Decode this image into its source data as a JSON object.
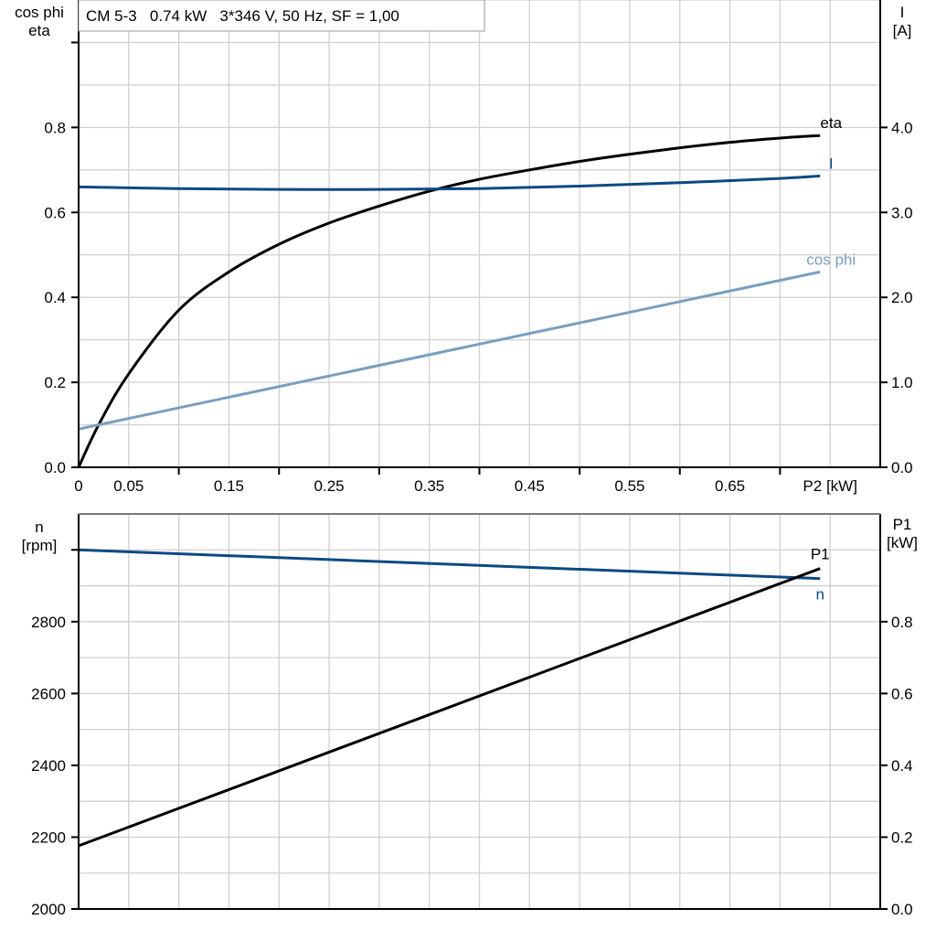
{
  "chart_data": [
    {
      "type": "line",
      "title": "CM 5-3   0.74 kW   3*346 V, 50 Hz, SF = 1,00",
      "xlabel": "P2 [kW]",
      "ylabel_left": [
        "cos phi",
        "eta"
      ],
      "ylabel_right": [
        "I",
        "[A]"
      ],
      "xlim": [
        0,
        0.8
      ],
      "ylim_left": [
        0,
        1.1
      ],
      "ylim_right": [
        0,
        5.5
      ],
      "x_tick_labels": [
        "0",
        "0.05",
        "0.15",
        "0.25",
        "0.35",
        "0.45",
        "0.55",
        "0.65"
      ],
      "y_left_tick_labels": [
        "0.0",
        "0.2",
        "0.4",
        "0.6",
        "0.8"
      ],
      "y_right_tick_labels": [
        "0.0",
        "1.0",
        "2.0",
        "3.0",
        "4.0"
      ],
      "grid": true,
      "series": [
        {
          "name": "eta",
          "axis": "left",
          "color": "#000000",
          "x": [
            0,
            0.02,
            0.05,
            0.1,
            0.15,
            0.2,
            0.25,
            0.3,
            0.35,
            0.4,
            0.45,
            0.5,
            0.55,
            0.6,
            0.65,
            0.7,
            0.74
          ],
          "y": [
            0,
            0.1,
            0.22,
            0.37,
            0.46,
            0.525,
            0.575,
            0.615,
            0.65,
            0.678,
            0.7,
            0.72,
            0.737,
            0.752,
            0.765,
            0.775,
            0.781
          ]
        },
        {
          "name": "I",
          "axis": "right",
          "color": "#0b4a82",
          "x": [
            0,
            0.1,
            0.2,
            0.3,
            0.4,
            0.5,
            0.6,
            0.7,
            0.74
          ],
          "y": [
            3.3,
            3.28,
            3.27,
            3.27,
            3.28,
            3.31,
            3.35,
            3.4,
            3.43
          ]
        },
        {
          "name": "cos phi",
          "axis": "left",
          "color": "#7a9ec0",
          "x": [
            0,
            0.37,
            0.74
          ],
          "y": [
            0.09,
            0.275,
            0.46
          ]
        }
      ]
    },
    {
      "type": "line",
      "ylabel_left": [
        "n",
        "[rpm]"
      ],
      "ylabel_right": [
        "P1",
        "[kW]"
      ],
      "xlim": [
        0,
        0.8
      ],
      "ylim_left": [
        2000,
        3100
      ],
      "ylim_right": [
        0,
        1.1
      ],
      "y_left_tick_labels": [
        "2000",
        "2200",
        "2400",
        "2600",
        "2800"
      ],
      "y_right_tick_labels": [
        "0.0",
        "0.2",
        "0.4",
        "0.6",
        "0.8"
      ],
      "grid": true,
      "series": [
        {
          "name": "n",
          "axis": "left",
          "color": "#0b4a82",
          "x": [
            0,
            0.74
          ],
          "y": [
            3000,
            2920
          ]
        },
        {
          "name": "P1",
          "axis": "right",
          "color": "#000000",
          "x": [
            0,
            0.74
          ],
          "y": [
            0.176,
            0.948
          ]
        }
      ]
    }
  ]
}
